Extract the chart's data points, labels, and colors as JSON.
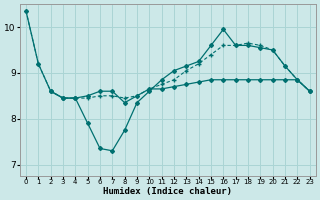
{
  "xlabel": "Humidex (Indice chaleur)",
  "background_color": "#cce8e8",
  "grid_color": "#aad4d4",
  "line_color": "#007070",
  "xlim": [
    -0.5,
    23.5
  ],
  "ylim": [
    6.75,
    10.5
  ],
  "yticks": [
    7,
    8,
    9,
    10
  ],
  "line1_x": [
    0,
    1,
    2,
    3,
    4,
    5,
    6,
    7,
    8,
    9,
    10,
    11,
    12,
    13,
    14,
    15,
    16,
    17,
    18,
    19,
    20,
    21,
    22,
    23
  ],
  "line1_y": [
    10.35,
    9.2,
    8.6,
    8.45,
    8.45,
    7.9,
    7.35,
    7.3,
    7.75,
    8.35,
    8.6,
    8.85,
    9.05,
    9.15,
    9.25,
    9.6,
    9.95,
    9.6,
    9.6,
    9.55,
    9.5,
    9.15,
    8.85,
    8.6
  ],
  "line2_x": [
    2,
    3,
    4,
    5,
    6,
    7,
    8,
    9,
    10,
    11,
    12,
    13,
    14,
    15,
    16,
    17,
    18,
    19,
    20,
    21,
    22,
    23
  ],
  "line2_y": [
    8.6,
    8.45,
    8.45,
    8.5,
    8.6,
    8.6,
    8.35,
    8.5,
    8.65,
    8.65,
    8.7,
    8.75,
    8.8,
    8.85,
    8.85,
    8.85,
    8.85,
    8.85,
    8.85,
    8.85,
    8.85,
    8.6
  ],
  "line3_x": [
    0,
    1,
    2,
    3,
    4,
    5,
    6,
    7,
    8,
    9,
    10,
    11,
    12,
    13,
    14,
    15,
    16,
    17,
    18,
    19,
    20,
    21,
    22,
    23
  ],
  "line3_y": [
    10.35,
    9.2,
    8.6,
    8.45,
    8.45,
    8.45,
    8.5,
    8.5,
    8.45,
    8.5,
    8.65,
    8.75,
    8.85,
    9.05,
    9.2,
    9.4,
    9.6,
    9.6,
    9.65,
    9.6,
    9.5,
    9.15,
    8.85,
    8.6
  ]
}
